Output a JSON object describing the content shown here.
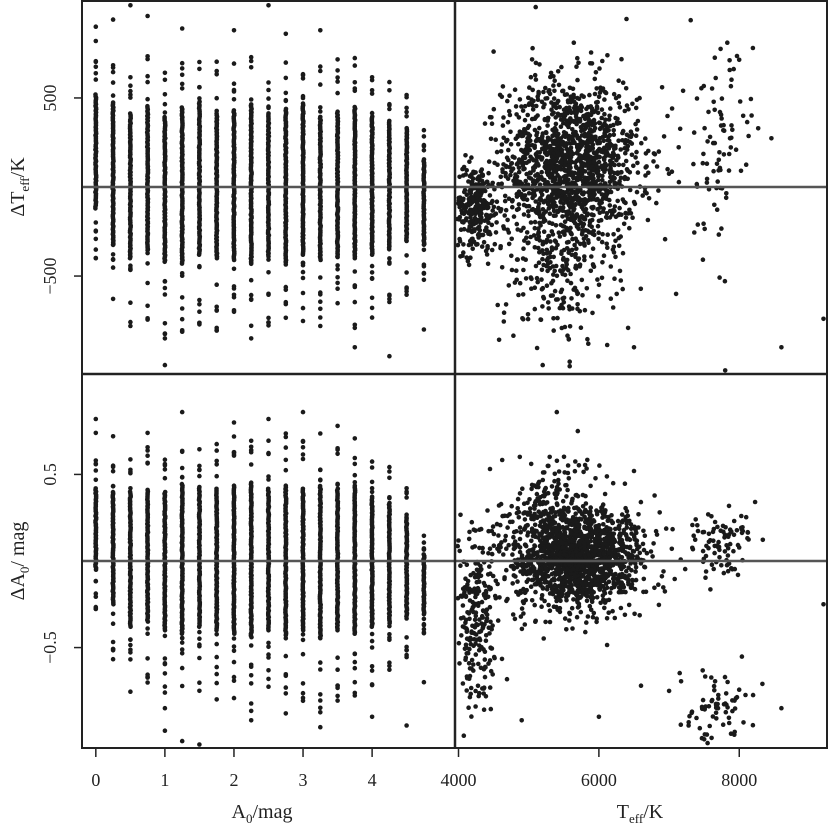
{
  "chart_data": [
    {
      "panel": "top-left",
      "type": "scatter",
      "xlabel": {
        "base": "A",
        "sub": "0",
        "rest": "/mag"
      },
      "ylabel": {
        "base": "ΔT",
        "sub": "eff",
        "rest": "/K"
      },
      "xticks": [
        0,
        1,
        2,
        3,
        4
      ],
      "yticks": [
        500,
        -500
      ],
      "ytick_labels": [
        "500",
        "−500"
      ],
      "xlim": [
        -0.2,
        5.2
      ],
      "ylim": [
        -1050,
        1050
      ],
      "reference_line": 0,
      "x_columns": [
        0.0,
        0.25,
        0.5,
        0.75,
        1.0,
        1.25,
        1.5,
        1.75,
        2.0,
        2.25,
        2.5,
        2.75,
        3.0,
        3.25,
        3.5,
        3.75,
        4.0,
        4.25,
        4.5,
        4.75
      ],
      "column_core": [
        [
          -120,
          520
        ],
        [
          -320,
          480
        ],
        [
          -400,
          420
        ],
        [
          -350,
          460
        ],
        [
          -420,
          400
        ],
        [
          -430,
          450
        ],
        [
          -380,
          480
        ],
        [
          -400,
          420
        ],
        [
          -410,
          430
        ],
        [
          -420,
          460
        ],
        [
          -390,
          420
        ],
        [
          -420,
          440
        ],
        [
          -380,
          470
        ],
        [
          -410,
          400
        ],
        [
          -390,
          430
        ],
        [
          -400,
          450
        ],
        [
          -380,
          400
        ],
        [
          -350,
          380
        ],
        [
          -300,
          330
        ],
        [
          -320,
          160
        ]
      ],
      "outliers": [
        [
          0.0,
          900
        ],
        [
          0.0,
          820
        ],
        [
          0.25,
          940
        ],
        [
          0.5,
          1020
        ],
        [
          0.75,
          960
        ],
        [
          1.0,
          -1000
        ],
        [
          1.0,
          -850
        ],
        [
          1.25,
          890
        ],
        [
          1.25,
          -620
        ],
        [
          1.5,
          -1040
        ],
        [
          1.5,
          -700
        ],
        [
          2.0,
          880
        ],
        [
          2.25,
          -850
        ],
        [
          2.5,
          1020
        ],
        [
          2.5,
          -760
        ],
        [
          2.75,
          860
        ],
        [
          3.0,
          -680
        ],
        [
          3.25,
          880
        ],
        [
          3.5,
          -1050
        ],
        [
          3.75,
          -900
        ],
        [
          4.25,
          -950
        ],
        [
          4.75,
          -800
        ]
      ],
      "series_color": "#1a1a1a"
    },
    {
      "panel": "top-right",
      "type": "scatter",
      "xlabel": {
        "base": "T",
        "sub": "eff",
        "rest": "/K"
      },
      "xticks": [
        4000,
        6000,
        8000
      ],
      "xlim": [
        3950,
        9250
      ],
      "ylim": [
        -1050,
        1050
      ],
      "reference_line": 0,
      "clusters": [
        {
          "cx": 5600,
          "cy": 120,
          "sx": 480,
          "sy": 240,
          "n": 1500
        },
        {
          "cx": 4250,
          "cy": -120,
          "sx": 150,
          "sy": 120,
          "n": 260
        },
        {
          "cx": 5400,
          "cy": -500,
          "sx": 400,
          "sy": 220,
          "n": 180
        },
        {
          "cx": 7700,
          "cy": 220,
          "sx": 250,
          "sy": 300,
          "n": 90
        }
      ],
      "outliers": [
        [
          4500,
          760
        ],
        [
          5100,
          1010
        ],
        [
          5900,
          1050
        ],
        [
          6900,
          560
        ],
        [
          7200,
          540
        ],
        [
          8000,
          1040
        ],
        [
          8600,
          -900
        ],
        [
          9200,
          -740
        ],
        [
          7800,
          -1030
        ],
        [
          5200,
          -1000
        ],
        [
          6500,
          -900
        ],
        [
          7100,
          -600
        ]
      ],
      "series_color": "#1a1a1a"
    },
    {
      "panel": "bottom-left",
      "type": "scatter",
      "xlabel": {
        "base": "A",
        "sub": "0",
        "rest": "/mag"
      },
      "ylabel": {
        "base": "ΔA",
        "sub": "0",
        "rest": "/ mag"
      },
      "xticks": [
        0,
        1,
        2,
        3,
        4
      ],
      "yticks": [
        0.5,
        -0.5
      ],
      "ytick_labels": [
        "0.5",
        "−0.5"
      ],
      "xlim": [
        -0.2,
        5.2
      ],
      "ylim": [
        -1.08,
        1.08
      ],
      "reference_line": 0,
      "x_columns": [
        0.0,
        0.25,
        0.5,
        0.75,
        1.0,
        1.25,
        1.5,
        1.75,
        2.0,
        2.25,
        2.5,
        2.75,
        3.0,
        3.25,
        3.5,
        3.75,
        4.0,
        4.25,
        4.5,
        4.75
      ],
      "column_core": [
        [
          -0.05,
          0.42
        ],
        [
          -0.25,
          0.4
        ],
        [
          -0.38,
          0.4
        ],
        [
          -0.35,
          0.42
        ],
        [
          -0.4,
          0.4
        ],
        [
          -0.42,
          0.45
        ],
        [
          -0.38,
          0.43
        ],
        [
          -0.4,
          0.42
        ],
        [
          -0.42,
          0.44
        ],
        [
          -0.44,
          0.46
        ],
        [
          -0.4,
          0.42
        ],
        [
          -0.42,
          0.44
        ],
        [
          -0.4,
          0.42
        ],
        [
          -0.44,
          0.44
        ],
        [
          -0.4,
          0.42
        ],
        [
          -0.42,
          0.44
        ],
        [
          -0.38,
          0.38
        ],
        [
          -0.36,
          0.34
        ],
        [
          -0.32,
          0.26
        ],
        [
          -0.3,
          0.04
        ]
      ],
      "outliers": [
        [
          0.0,
          0.82
        ],
        [
          0.0,
          0.74
        ],
        [
          0.25,
          0.72
        ],
        [
          0.75,
          0.74
        ],
        [
          1.0,
          -0.85
        ],
        [
          1.0,
          -0.98
        ],
        [
          1.25,
          0.86
        ],
        [
          1.25,
          -1.04
        ],
        [
          1.5,
          -1.06
        ],
        [
          2.0,
          0.8
        ],
        [
          2.25,
          -0.92
        ],
        [
          2.5,
          0.82
        ],
        [
          2.75,
          -0.88
        ],
        [
          3.0,
          0.86
        ],
        [
          3.25,
          -0.96
        ],
        [
          3.5,
          0.78
        ],
        [
          4.0,
          -0.9
        ],
        [
          4.5,
          -0.95
        ],
        [
          4.75,
          -0.7
        ]
      ],
      "series_color": "#1a1a1a"
    },
    {
      "panel": "bottom-right",
      "type": "scatter",
      "xlabel": {
        "base": "T",
        "sub": "eff",
        "rest": "/K"
      },
      "xticks": [
        4000,
        6000,
        8000
      ],
      "xlim": [
        3950,
        9250
      ],
      "ylim": [
        -1.08,
        1.08
      ],
      "reference_line": 0,
      "clusters": [
        {
          "cx": 5700,
          "cy": 0.02,
          "sx": 450,
          "sy": 0.14,
          "n": 1500
        },
        {
          "cx": 4250,
          "cy": -0.35,
          "sx": 160,
          "sy": 0.25,
          "n": 240
        },
        {
          "cx": 5300,
          "cy": 0.3,
          "sx": 350,
          "sy": 0.15,
          "n": 200
        },
        {
          "cx": 7700,
          "cy": 0.12,
          "sx": 280,
          "sy": 0.1,
          "n": 90
        },
        {
          "cx": 7700,
          "cy": -0.85,
          "sx": 280,
          "sy": 0.12,
          "n": 70
        }
      ],
      "outliers": [
        [
          5400,
          0.86
        ],
        [
          5700,
          0.75
        ],
        [
          6500,
          0.52
        ],
        [
          4900,
          -0.92
        ],
        [
          6000,
          -0.9
        ],
        [
          8600,
          -0.85
        ],
        [
          9200,
          -0.25
        ],
        [
          7000,
          -0.75
        ],
        [
          6600,
          -0.72
        ],
        [
          7500,
          -1.03
        ]
      ],
      "series_color": "#1a1a1a"
    }
  ],
  "reference_line_color": "#555555"
}
